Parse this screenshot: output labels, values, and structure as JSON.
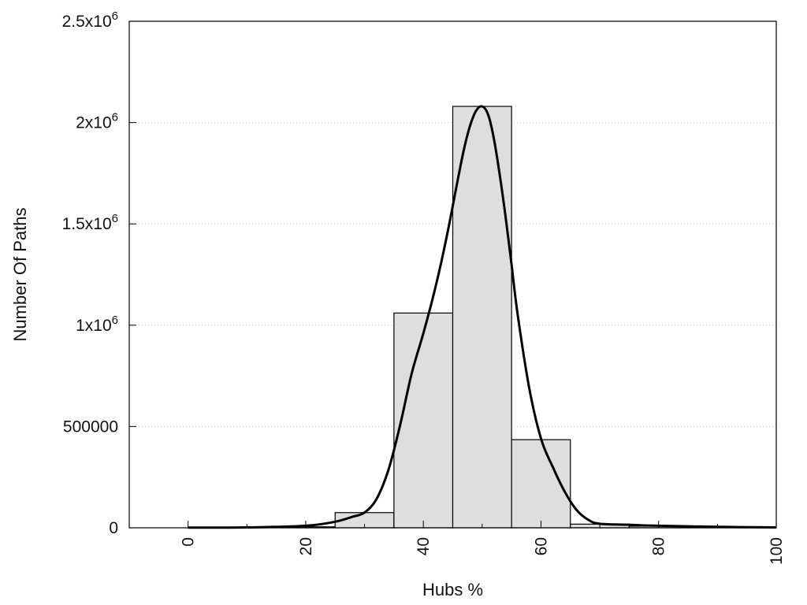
{
  "chart_data": {
    "type": "bar",
    "xlabel": "Hubs %",
    "ylabel": "Number Of Paths",
    "xlim": [
      -10,
      100
    ],
    "ylim": [
      0,
      2500000
    ],
    "grid": "horizontal-dotted",
    "bin_width": 10,
    "bars": [
      {
        "center": 10,
        "value": 2000
      },
      {
        "center": 20,
        "value": 5000
      },
      {
        "center": 30,
        "value": 75000
      },
      {
        "center": 40,
        "value": 1060000
      },
      {
        "center": 50,
        "value": 2080000
      },
      {
        "center": 60,
        "value": 435000
      },
      {
        "center": 70,
        "value": 18000
      },
      {
        "center": 80,
        "value": 8000
      },
      {
        "center": 90,
        "value": 3000
      }
    ],
    "x_ticks": [
      0,
      20,
      40,
      60,
      80,
      100
    ],
    "y_ticks": [
      {
        "value": 0,
        "mantissa": "0",
        "exponent": ""
      },
      {
        "value": 500000,
        "mantissa": "500000",
        "exponent": ""
      },
      {
        "value": 1000000,
        "mantissa": "1x10",
        "exponent": "6"
      },
      {
        "value": 1500000,
        "mantissa": "1.5x10",
        "exponent": "6"
      },
      {
        "value": 2000000,
        "mantissa": "2x10",
        "exponent": "6"
      },
      {
        "value": 2500000,
        "mantissa": "2.5x10",
        "exponent": "6"
      }
    ],
    "fit_curve": {
      "x": [
        0,
        10,
        20,
        25,
        28,
        30,
        32,
        34,
        36,
        38,
        40,
        42,
        44,
        46,
        47,
        48,
        49,
        50,
        51,
        52,
        53,
        54,
        55,
        56,
        58,
        60,
        62,
        64,
        66,
        68,
        70,
        75,
        80,
        90,
        100
      ],
      "y": [
        1000,
        2000,
        10000,
        30000,
        55000,
        75000,
        140000,
        280000,
        500000,
        760000,
        960000,
        1180000,
        1440000,
        1740000,
        1880000,
        1990000,
        2060000,
        2080000,
        2040000,
        1920000,
        1740000,
        1530000,
        1300000,
        1060000,
        690000,
        440000,
        300000,
        180000,
        90000,
        40000,
        20000,
        15000,
        10000,
        5000,
        2000
      ]
    }
  }
}
